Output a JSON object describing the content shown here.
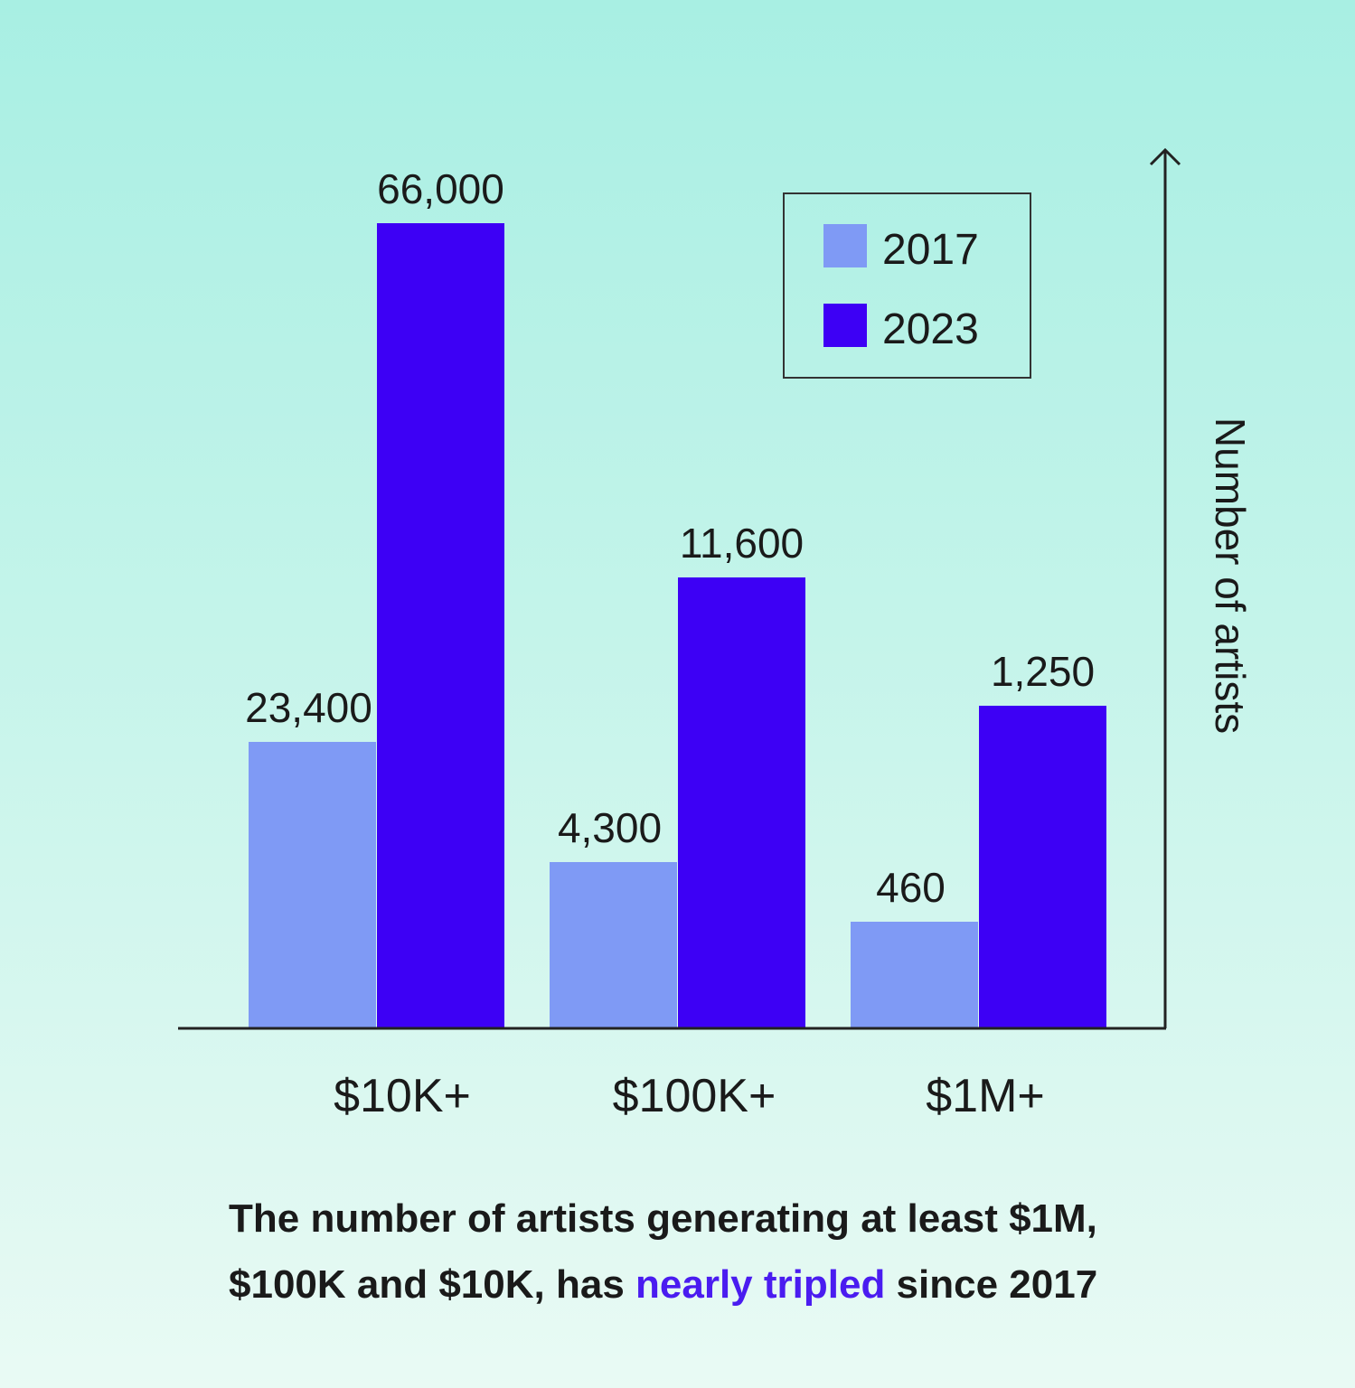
{
  "chart_data": {
    "type": "bar",
    "categories": [
      "$10K+",
      "$100K+",
      "$1M+"
    ],
    "series": [
      {
        "name": "2017",
        "values": [
          23400,
          4300,
          460
        ],
        "labels": [
          "23,400",
          "4,300",
          "460"
        ],
        "color": "#7f9af5"
      },
      {
        "name": "2023",
        "values": [
          66000,
          11600,
          1250
        ],
        "labels": [
          "66,000",
          "11,600",
          "1,250"
        ],
        "color": "#3d00f5"
      }
    ],
    "ylabel": "Number of artists",
    "xlabel": "",
    "grid": false,
    "legend_position": "top-right",
    "y_axis_side": "right"
  },
  "caption": {
    "line1": "The number of artists generating at least $1M,",
    "line2_pre": "$100K and $10K, has ",
    "line2_highlight": "nearly tripled",
    "line2_post": " since 2017",
    "highlight_color": "#4a1cf0"
  }
}
